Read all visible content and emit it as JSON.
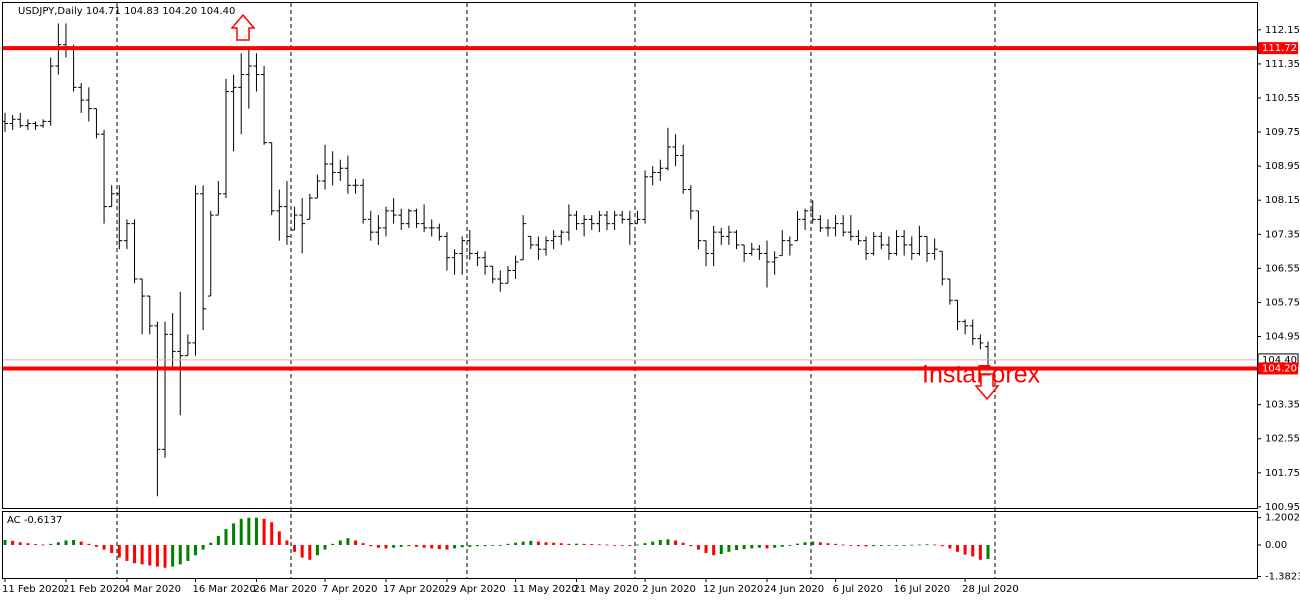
{
  "chart_data": {
    "type": "ohlc",
    "title": "USDJPY,Daily  104.71 104.83 104.20 104.40",
    "watermark": "InstaForex",
    "color": "#000000",
    "ylim": [
      100.9,
      112.78
    ],
    "yticks": [
      112.15,
      111.35,
      110.55,
      109.75,
      108.95,
      108.15,
      107.35,
      106.55,
      105.75,
      104.95,
      103.35,
      102.55,
      101.75,
      100.95
    ],
    "levels": [
      {
        "value": 111.72,
        "color": "#ff0000"
      },
      {
        "value": 104.2,
        "label": "104.20",
        "color": "#ff0000"
      }
    ],
    "current_price": {
      "value": 104.4,
      "label": "104.40"
    },
    "categories": [
      "11 Feb 2020",
      null,
      null,
      null,
      null,
      null,
      null,
      null,
      "21 Feb 2020",
      null,
      null,
      null,
      null,
      null,
      null,
      null,
      "4 Mar 2020",
      null,
      null,
      null,
      null,
      null,
      null,
      null,
      null,
      "16 Mar 2020",
      null,
      null,
      null,
      null,
      null,
      null,
      null,
      "26 Mar 2020",
      null,
      null,
      null,
      null,
      null,
      null,
      null,
      null,
      "7 Apr 2020",
      null,
      null,
      null,
      null,
      null,
      null,
      null,
      "17 Apr 2020",
      null,
      null,
      null,
      null,
      null,
      null,
      null,
      "29 Apr 2020",
      null,
      null,
      null,
      null,
      null,
      null,
      null,
      null,
      "11 May 2020",
      null,
      null,
      null,
      null,
      null,
      null,
      null,
      "21 May 2020",
      null,
      null,
      null,
      null,
      null,
      null,
      null,
      null,
      "2 Jun 2020",
      null,
      null,
      null,
      null,
      null,
      null,
      null,
      "12 Jun 2020",
      null,
      null,
      null,
      null,
      null,
      null,
      null,
      "24 Jun 2020",
      null,
      null,
      null,
      null,
      null,
      null,
      null,
      null,
      "6 Jul 2020",
      null,
      null,
      null,
      null,
      null,
      null,
      null,
      "16 Jul 2020",
      null,
      null,
      null,
      null,
      null,
      null,
      null,
      null,
      "28 Jul 2020",
      null,
      null,
      null
    ],
    "open": [
      110.0,
      109.95,
      110.05,
      109.9,
      109.95,
      109.9,
      110.0,
      111.3,
      111.8,
      111.7,
      110.8,
      110.5,
      110.3,
      109.7,
      108.0,
      108.3,
      107.2,
      107.6,
      106.3,
      105.9,
      105.2,
      102.3,
      105.0,
      104.6,
      104.5,
      104.8,
      108.3,
      105.9,
      107.8,
      108.3,
      110.7,
      110.8,
      111.1,
      111.3,
      111.1,
      109.5,
      107.9,
      108.0,
      107.45,
      107.8,
      107.7,
      108.2,
      108.6,
      109.0,
      108.8,
      108.9,
      108.5,
      108.5,
      107.7,
      107.4,
      107.5,
      107.9,
      107.8,
      107.6,
      107.9,
      107.6,
      107.5,
      107.5,
      107.3,
      106.8,
      106.9,
      107.2,
      106.9,
      106.8,
      106.6,
      106.3,
      106.2,
      106.5,
      106.75,
      107.3,
      107.1,
      107.0,
      107.2,
      107.3,
      107.4,
      107.8,
      107.6,
      107.7,
      107.6,
      107.8,
      107.6,
      107.8,
      107.7,
      107.6,
      107.7,
      108.7,
      108.8,
      108.9,
      109.4,
      109.2,
      108.4,
      107.9,
      107.2,
      106.9,
      107.4,
      107.3,
      107.4,
      107.1,
      106.9,
      107.0,
      106.9,
      106.7,
      106.85,
      107.2,
      107.2,
      107.7,
      107.9,
      107.7,
      107.5,
      107.5,
      107.6,
      107.4,
      107.3,
      107.2,
      106.9,
      107.3,
      107.1,
      106.9,
      107.3,
      107.1,
      106.9,
      107.3,
      106.9,
      106.95,
      106.3,
      105.8,
      105.3,
      105.2,
      104.9,
      104.71
    ],
    "high": [
      110.2,
      110.15,
      110.2,
      110.05,
      110.0,
      110.05,
      111.5,
      112.3,
      112.3,
      111.8,
      110.9,
      110.8,
      110.3,
      109.8,
      108.5,
      108.5,
      107.7,
      107.7,
      106.3,
      105.9,
      105.3,
      105.3,
      105.5,
      106.0,
      105.0,
      108.5,
      108.5,
      107.9,
      108.6,
      111.0,
      111.1,
      111.6,
      111.7,
      111.6,
      111.3,
      109.5,
      108.4,
      108.6,
      108.0,
      108.2,
      108.3,
      108.75,
      109.45,
      109.3,
      109.1,
      109.2,
      108.65,
      108.65,
      107.9,
      107.8,
      108.0,
      108.2,
      107.95,
      107.95,
      107.95,
      108.05,
      107.7,
      107.6,
      107.4,
      107.0,
      107.3,
      107.45,
      106.95,
      106.95,
      106.6,
      106.5,
      106.6,
      106.85,
      107.8,
      107.3,
      107.3,
      107.3,
      107.45,
      107.45,
      108.05,
      107.9,
      107.8,
      107.8,
      107.9,
      107.9,
      107.9,
      107.9,
      107.9,
      107.9,
      108.85,
      108.95,
      109.1,
      109.85,
      109.7,
      109.45,
      108.5,
      107.9,
      107.2,
      107.55,
      107.5,
      107.55,
      107.45,
      107.1,
      107.15,
      107.1,
      107.2,
      106.95,
      107.45,
      107.3,
      107.9,
      107.95,
      108.15,
      107.8,
      107.7,
      107.8,
      107.8,
      107.8,
      107.45,
      107.3,
      107.4,
      107.4,
      107.3,
      107.45,
      107.45,
      107.3,
      107.55,
      107.3,
      107.25,
      106.95,
      106.3,
      105.8,
      105.35,
      105.35,
      105.0,
      104.83
    ],
    "low": [
      109.75,
      109.8,
      109.85,
      109.8,
      109.8,
      109.85,
      109.9,
      111.1,
      111.5,
      110.7,
      110.2,
      110.0,
      109.6,
      107.6,
      108.0,
      107.0,
      107.0,
      106.2,
      105.0,
      105.0,
      101.2,
      102.1,
      104.2,
      103.1,
      104.5,
      104.5,
      105.1,
      105.9,
      107.8,
      108.2,
      109.3,
      109.7,
      110.3,
      110.7,
      109.45,
      107.8,
      107.2,
      107.1,
      107.45,
      106.9,
      107.7,
      108.2,
      108.4,
      108.5,
      108.6,
      108.3,
      108.3,
      107.6,
      107.2,
      107.1,
      107.3,
      107.6,
      107.45,
      107.5,
      107.5,
      107.4,
      107.3,
      107.2,
      106.5,
      106.4,
      106.4,
      106.75,
      106.6,
      106.4,
      106.2,
      106.0,
      106.2,
      106.3,
      106.75,
      107.0,
      106.75,
      106.85,
      107.0,
      107.1,
      107.2,
      107.45,
      107.3,
      107.45,
      107.4,
      107.45,
      107.45,
      107.6,
      107.1,
      107.6,
      107.6,
      108.5,
      108.6,
      108.85,
      108.95,
      108.3,
      107.7,
      107.0,
      106.6,
      106.6,
      107.1,
      107.1,
      107.0,
      106.7,
      106.85,
      106.75,
      106.1,
      106.4,
      106.85,
      106.85,
      107.2,
      107.45,
      107.6,
      107.4,
      107.3,
      107.3,
      107.3,
      107.2,
      107.1,
      106.75,
      106.85,
      107.0,
      106.75,
      106.85,
      106.85,
      106.75,
      106.85,
      106.7,
      106.75,
      106.15,
      105.7,
      105.1,
      105.0,
      104.75,
      104.65,
      104.2
    ],
    "close": [
      109.95,
      110.05,
      109.9,
      109.95,
      109.9,
      110.0,
      111.3,
      111.8,
      111.7,
      110.8,
      110.5,
      110.3,
      109.7,
      108.0,
      108.3,
      107.2,
      107.6,
      106.3,
      105.9,
      105.2,
      102.3,
      105.0,
      104.6,
      104.5,
      104.8,
      108.3,
      105.6,
      107.8,
      108.3,
      110.7,
      110.8,
      111.1,
      111.3,
      111.1,
      109.5,
      107.9,
      108.0,
      107.3,
      107.8,
      107.6,
      108.2,
      108.6,
      109.0,
      108.8,
      108.9,
      108.5,
      108.5,
      107.7,
      107.4,
      107.5,
      107.9,
      107.8,
      107.6,
      107.9,
      107.6,
      107.5,
      107.5,
      107.3,
      106.8,
      106.9,
      107.2,
      106.9,
      106.8,
      106.6,
      106.3,
      106.2,
      106.5,
      106.7,
      107.6,
      107.1,
      107.0,
      107.2,
      107.3,
      107.4,
      107.8,
      107.6,
      107.7,
      107.6,
      107.8,
      107.6,
      107.8,
      107.7,
      107.6,
      107.7,
      108.7,
      108.8,
      108.9,
      109.4,
      109.2,
      108.4,
      107.9,
      107.2,
      106.9,
      107.4,
      107.3,
      107.4,
      107.1,
      106.9,
      107.0,
      106.9,
      106.7,
      106.8,
      107.2,
      107.1,
      107.7,
      107.9,
      107.7,
      107.5,
      107.5,
      107.6,
      107.4,
      107.3,
      107.2,
      106.9,
      107.3,
      107.1,
      106.9,
      107.3,
      107.1,
      106.9,
      107.3,
      106.9,
      107.0,
      106.3,
      105.8,
      105.3,
      105.2,
      104.9,
      104.8,
      104.4
    ],
    "indicator": {
      "name": "AC -0.6137",
      "up_color": "#008000",
      "down_color": "#ff0000",
      "ylim": [
        -1.45,
        1.45
      ],
      "yticks": [
        1.2002,
        {
          "value": 0,
          "label": "0.00"
        },
        -1.3823
      ],
      "values": [
        0.22,
        0.18,
        0.12,
        0.08,
        0.04,
        0.02,
        0.05,
        0.12,
        0.2,
        0.22,
        0.15,
        0.05,
        -0.08,
        -0.2,
        -0.35,
        -0.55,
        -0.7,
        -0.8,
        -0.85,
        -0.9,
        -0.95,
        -1.0,
        -0.95,
        -0.85,
        -0.7,
        -0.45,
        -0.2,
        0.1,
        0.4,
        0.7,
        0.95,
        1.15,
        1.2,
        1.2,
        1.15,
        1.0,
        0.6,
        0.2,
        -0.3,
        -0.55,
        -0.65,
        -0.45,
        -0.2,
        0.05,
        0.2,
        0.3,
        0.2,
        0.08,
        -0.05,
        -0.12,
        -0.15,
        -0.12,
        -0.08,
        -0.05,
        -0.08,
        -0.12,
        -0.15,
        -0.18,
        -0.2,
        -0.15,
        -0.1,
        -0.08,
        -0.05,
        -0.05,
        -0.03,
        0.0,
        0.05,
        0.1,
        0.15,
        0.18,
        0.15,
        0.12,
        0.1,
        0.08,
        0.05,
        0.06,
        0.05,
        0.04,
        0.03,
        0.02,
        0.0,
        -0.02,
        -0.04,
        0.02,
        0.08,
        0.15,
        0.22,
        0.25,
        0.2,
        0.1,
        -0.05,
        -0.2,
        -0.35,
        -0.45,
        -0.4,
        -0.3,
        -0.22,
        -0.18,
        -0.15,
        -0.12,
        -0.15,
        -0.12,
        -0.08,
        0.0,
        0.06,
        0.12,
        0.15,
        0.12,
        0.08,
        0.05,
        0.02,
        -0.02,
        -0.05,
        -0.06,
        -0.05,
        -0.04,
        -0.03,
        -0.02,
        0.0,
        0.01,
        0.02,
        0.03,
        0.02,
        -0.05,
        -0.15,
        -0.3,
        -0.42,
        -0.5,
        -0.65,
        -0.6137
      ]
    }
  }
}
